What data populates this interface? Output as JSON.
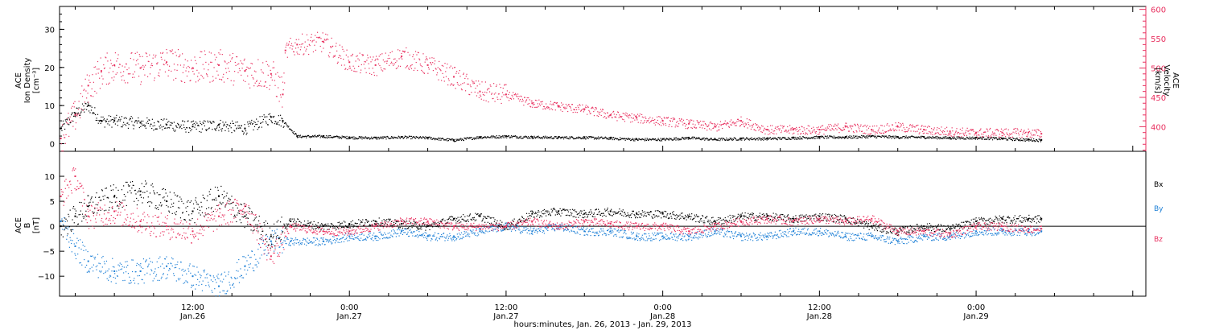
{
  "colors": {
    "density": "#000000",
    "velocity": "#e8305f",
    "bx": "#000000",
    "by": "#1c7fd6",
    "bz": "#e8305f",
    "axis": "#000000"
  },
  "xaxis": {
    "ticks": [
      {
        "time": "12:00",
        "date": "Jan.26",
        "hour": 12
      },
      {
        "time": "0:00",
        "date": "Jan.27",
        "hour": 24
      },
      {
        "time": "12:00",
        "date": "Jan.27",
        "hour": 36
      },
      {
        "time": "0:00",
        "date": "Jan.28",
        "hour": 48
      },
      {
        "time": "12:00",
        "date": "Jan.28",
        "hour": 60
      },
      {
        "time": "0:00",
        "date": "Jan.29",
        "hour": 72
      }
    ],
    "title": "hours:minutes, Jan. 26, 2013 - Jan. 29, 2013"
  },
  "top_panel": {
    "left_label": [
      "ACE",
      "Ion Density",
      "[cm⁻³]"
    ],
    "right_label": [
      "ACE",
      "Velocity",
      "[km/s]"
    ],
    "left_ticks": [
      "0",
      "10",
      "20",
      "30"
    ],
    "right_ticks": [
      "400",
      "450",
      "500",
      "550",
      "600"
    ]
  },
  "bottom_panel": {
    "left_label": [
      "ACE",
      "B",
      "[nT]"
    ],
    "ticks": [
      "−10",
      "−5",
      "0",
      "5",
      "10"
    ],
    "legend": {
      "bx": "Bx",
      "by": "By",
      "bz": "Bz"
    }
  },
  "chart_data": [
    {
      "type": "scatter",
      "title": "",
      "xlabel": "hours:minutes, Jan. 26, 2013 - Jan. 29, 2013",
      "x_unit": "hours since Jan.26 00:00",
      "xlim": [
        1.8,
        85
      ],
      "ylabel_left": "ACE Ion Density [cm⁻³]",
      "ylim_left": [
        -2,
        36
      ],
      "ylabel_right": "ACE Velocity [km/s]",
      "ylim_right": [
        358,
        605
      ],
      "series": [
        {
          "name": "Ion Density",
          "axis": "left",
          "color": "#000000",
          "x": [
            1.9,
            3,
            4,
            5,
            6,
            8,
            10,
            12,
            14,
            16,
            18,
            18.9,
            20,
            22,
            24,
            26,
            28,
            30,
            32,
            34,
            36,
            38,
            40,
            42,
            44,
            46,
            48,
            50,
            52,
            54,
            56,
            58,
            60,
            62,
            64,
            66,
            68,
            70,
            72,
            74,
            76,
            77
          ],
          "y": [
            4,
            8,
            10,
            6,
            6,
            5.5,
            5,
            4.5,
            5,
            4,
            7,
            6,
            2,
            2,
            1.7,
            1.6,
            1.8,
            1.6,
            1.0,
            1.8,
            2.0,
            1.8,
            1.7,
            1.7,
            1.5,
            1.2,
            1.2,
            1.6,
            1.2,
            1.4,
            1.4,
            1.6,
            1.8,
            1.8,
            2.0,
            1.8,
            1.8,
            1.6,
            1.6,
            1.4,
            1.1,
            1.0
          ]
        },
        {
          "name": "Velocity",
          "axis": "right",
          "color": "#e8305f",
          "x": [
            1.9,
            3,
            4,
            5,
            6,
            8,
            10,
            12,
            14,
            16,
            18,
            18.9,
            19.1,
            20,
            22,
            24,
            26,
            28,
            30,
            32,
            34,
            36,
            38,
            40,
            42,
            44,
            46,
            48,
            50,
            52,
            54,
            56,
            58,
            60,
            62,
            64,
            66,
            68,
            70,
            72,
            74,
            76,
            77
          ],
          "y": [
            380,
            420,
            470,
            495,
            505,
            500,
            510,
            500,
            505,
            495,
            490,
            455,
            530,
            540,
            545,
            510,
            505,
            520,
            505,
            485,
            460,
            455,
            440,
            435,
            430,
            420,
            415,
            410,
            405,
            400,
            410,
            395,
            395,
            395,
            400,
            395,
            400,
            395,
            392,
            390,
            390,
            390,
            388
          ]
        }
      ]
    },
    {
      "type": "scatter",
      "title": "",
      "x_unit": "hours since Jan.26 00:00",
      "xlim": [
        1.8,
        85
      ],
      "ylabel": "ACE B [nT]",
      "ylim": [
        -14,
        15
      ],
      "series": [
        {
          "name": "Bx",
          "color": "#000000",
          "x": [
            1.9,
            3,
            4,
            6,
            8,
            10,
            12,
            14,
            16,
            18,
            19.5,
            22,
            24,
            26,
            28,
            30,
            32,
            34,
            36,
            38,
            40,
            42,
            44,
            46,
            48,
            50,
            52,
            54,
            56,
            58,
            60,
            62,
            64,
            66,
            68,
            70,
            72,
            74,
            76,
            77
          ],
          "y": [
            0,
            2,
            4,
            6,
            7,
            5,
            3,
            6,
            2,
            -2,
            1,
            0,
            0.5,
            1,
            0.5,
            0,
            1.5,
            2,
            0,
            2.5,
            3,
            2.5,
            3,
            2.5,
            2.5,
            2,
            1,
            2,
            2,
            1.5,
            2,
            1.5,
            0,
            -1,
            0,
            -0.5,
            1,
            1.5,
            1.5,
            1.5
          ]
        },
        {
          "name": "By",
          "color": "#1c7fd6",
          "x": [
            1.9,
            3,
            4,
            6,
            8,
            10,
            12,
            14,
            16,
            18,
            19.5,
            22,
            24,
            26,
            28,
            30,
            32,
            34,
            36,
            38,
            40,
            42,
            44,
            46,
            48,
            50,
            52,
            54,
            56,
            58,
            60,
            62,
            64,
            66,
            68,
            70,
            72,
            74,
            76,
            77
          ],
          "y": [
            1,
            -4,
            -7,
            -9,
            -9,
            -8,
            -10,
            -12,
            -8,
            -3,
            -3,
            -3,
            -2,
            -2,
            -1,
            -2,
            -2,
            -1,
            0,
            -1,
            0,
            -1,
            -1,
            -2,
            -2,
            -2,
            -1,
            -2,
            -2,
            -1,
            -1,
            -2,
            -2,
            -3,
            -2,
            -2,
            -1,
            -1,
            -1,
            -1
          ]
        },
        {
          "name": "Bz",
          "color": "#e8305f",
          "x": [
            1.9,
            3,
            4,
            6,
            8,
            10,
            12,
            14,
            16,
            18,
            19.5,
            22,
            24,
            26,
            28,
            30,
            32,
            34,
            36,
            38,
            40,
            42,
            44,
            46,
            48,
            50,
            52,
            54,
            56,
            58,
            60,
            62,
            64,
            66,
            68,
            70,
            72,
            74,
            76,
            77
          ],
          "y": [
            6,
            10,
            2,
            3,
            1,
            0,
            -1,
            2,
            4,
            -6,
            0,
            -1,
            -1,
            0,
            1,
            1,
            0,
            0,
            0,
            1,
            0,
            1,
            0.5,
            0,
            0,
            -1,
            0,
            1,
            1.5,
            1,
            1.5,
            1,
            1.5,
            -1,
            -1,
            -1.5,
            0,
            0,
            -0.5,
            -0.5
          ]
        }
      ]
    }
  ]
}
